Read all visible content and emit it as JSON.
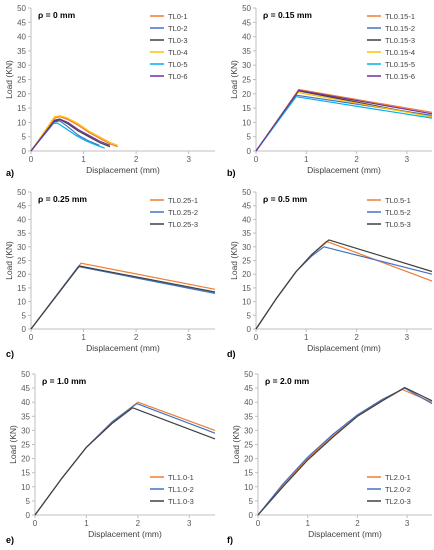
{
  "chart_data": [
    {
      "type": "line",
      "panel_letter": "a)",
      "title": "ρ = 0 mm",
      "xlabel": "Displacement (mm)",
      "ylabel": "Load (KN)",
      "xlim": [
        0,
        3.5
      ],
      "ylim": [
        0,
        50
      ],
      "xticks": [
        "0",
        "1",
        "2",
        "3"
      ],
      "yticks": [
        "0",
        "5",
        "10",
        "15",
        "20",
        "25",
        "30",
        "35",
        "40",
        "45",
        "50"
      ],
      "grid": false,
      "legend_position": "top-right",
      "series": [
        {
          "name": "TL0-1",
          "color": "#ED7D31",
          "x": [
            0,
            0.45,
            0.55,
            0.7,
            0.9,
            1.1,
            1.3,
            1.5,
            1.65
          ],
          "y": [
            0,
            11.5,
            12,
            11,
            9,
            6.5,
            4.5,
            2.5,
            1.5
          ]
        },
        {
          "name": "TL0-2",
          "color": "#4472C4",
          "x": [
            0,
            0.45,
            0.55,
            0.7,
            0.9,
            1.1,
            1.3
          ],
          "y": [
            0,
            10.2,
            10.5,
            8.5,
            5.5,
            3.5,
            2
          ]
        },
        {
          "name": "TL0-3",
          "color": "#404040",
          "x": [
            0,
            0.45,
            0.55,
            0.7,
            0.9,
            1.1,
            1.3,
            1.5
          ],
          "y": [
            0,
            10.5,
            11,
            9.5,
            7,
            5,
            3,
            1.5
          ]
        },
        {
          "name": "TL0-4",
          "color": "#FFC000",
          "x": [
            0,
            0.45,
            0.55,
            0.7,
            0.9,
            1.1,
            1.3,
            1.5,
            1.65
          ],
          "y": [
            0,
            12,
            12.3,
            11.5,
            9.5,
            7,
            5,
            3,
            2
          ]
        },
        {
          "name": "TL0-5",
          "color": "#00B0F0",
          "x": [
            0,
            0.4,
            0.5,
            0.65,
            0.85,
            1.05,
            1.25,
            1.4
          ],
          "y": [
            0,
            9.5,
            9.8,
            8,
            5.5,
            3.5,
            2,
            1
          ]
        },
        {
          "name": "TL0-6",
          "color": "#7030A0",
          "x": [
            0,
            0.45,
            0.55,
            0.7,
            0.9,
            1.1,
            1.3,
            1.5
          ],
          "y": [
            0,
            10.8,
            11.2,
            10,
            7.5,
            5.5,
            3.5,
            2
          ]
        }
      ]
    },
    {
      "type": "line",
      "panel_letter": "b)",
      "title": "ρ = 0.15 mm",
      "xlabel": "Displacement (mm)",
      "ylabel": "Load (KN)",
      "xlim": [
        0,
        3.5
      ],
      "ylim": [
        0,
        50
      ],
      "xticks": [
        "0",
        "1",
        "2",
        "3"
      ],
      "yticks": [
        "0",
        "5",
        "10",
        "15",
        "20",
        "25",
        "30",
        "35",
        "40",
        "45",
        "50"
      ],
      "grid": false,
      "legend_position": "top-right",
      "series": [
        {
          "name": "TL0.15-1",
          "color": "#ED7D31",
          "x": [
            0,
            0.85,
            3.5
          ],
          "y": [
            0,
            21.5,
            13.5
          ]
        },
        {
          "name": "TL0.15-2",
          "color": "#4472C4",
          "x": [
            0,
            0.8,
            3.5
          ],
          "y": [
            0,
            19.5,
            12.5
          ]
        },
        {
          "name": "TL0.15-3",
          "color": "#404040",
          "x": [
            0,
            0.85,
            3.5
          ],
          "y": [
            0,
            21,
            12
          ]
        },
        {
          "name": "TL0.15-4",
          "color": "#FFC000",
          "x": [
            0,
            0.82,
            3.5
          ],
          "y": [
            0,
            20.5,
            12
          ]
        },
        {
          "name": "TL0.15-5",
          "color": "#00B0F0",
          "x": [
            0,
            0.8,
            3.5
          ],
          "y": [
            0,
            19,
            11.5
          ]
        },
        {
          "name": "TL0.15-6",
          "color": "#7030A0",
          "x": [
            0,
            0.85,
            3.5
          ],
          "y": [
            0,
            21.2,
            13
          ]
        }
      ]
    },
    {
      "type": "line",
      "panel_letter": "c)",
      "title": "ρ = 0.25 mm",
      "xlabel": "Displacement (mm)",
      "ylabel": "Load (KN)",
      "xlim": [
        0,
        3.5
      ],
      "ylim": [
        0,
        50
      ],
      "xticks": [
        "0",
        "1",
        "2",
        "3"
      ],
      "yticks": [
        "0",
        "5",
        "10",
        "15",
        "20",
        "25",
        "30",
        "35",
        "40",
        "45",
        "50"
      ],
      "grid": false,
      "legend_position": "top-right",
      "series": [
        {
          "name": "TL0.25-1",
          "color": "#ED7D31",
          "x": [
            0,
            0.95,
            3.5
          ],
          "y": [
            0,
            24,
            14.5
          ]
        },
        {
          "name": "TL0.25-2",
          "color": "#4472C4",
          "x": [
            0,
            0.9,
            3.5
          ],
          "y": [
            0,
            22.8,
            13
          ]
        },
        {
          "name": "TL0.25-3",
          "color": "#404040",
          "x": [
            0,
            0.92,
            3.5
          ],
          "y": [
            0,
            23,
            13.5
          ]
        }
      ]
    },
    {
      "type": "line",
      "panel_letter": "d)",
      "title": "ρ = 0.5 mm",
      "xlabel": "Displacement (mm)",
      "ylabel": "Load (KN)",
      "xlim": [
        0,
        3.5
      ],
      "ylim": [
        0,
        50
      ],
      "xticks": [
        "0",
        "1",
        "2",
        "3"
      ],
      "yticks": [
        "0",
        "5",
        "10",
        "15",
        "20",
        "25",
        "30",
        "35",
        "40",
        "45",
        "50"
      ],
      "grid": false,
      "legend_position": "top-right",
      "series": [
        {
          "name": "TL0.5-1",
          "color": "#ED7D31",
          "x": [
            0,
            0.4,
            0.8,
            1.1,
            1.4,
            3.5
          ],
          "y": [
            0,
            11,
            21,
            27,
            32,
            17.5
          ]
        },
        {
          "name": "TL0.5-2",
          "color": "#4472C4",
          "x": [
            0,
            0.4,
            0.8,
            1.1,
            1.35,
            3.5
          ],
          "y": [
            0,
            11,
            21,
            26.5,
            30,
            20
          ]
        },
        {
          "name": "TL0.5-3",
          "color": "#404040",
          "x": [
            0,
            0.4,
            0.8,
            1.1,
            1.45,
            3.5
          ],
          "y": [
            0,
            11,
            21,
            27,
            32.5,
            21
          ]
        }
      ]
    },
    {
      "type": "line",
      "panel_letter": "e)",
      "title": "ρ = 1.0 mm",
      "xlabel": "Displacement (mm)",
      "ylabel": "Load (KN)",
      "xlim": [
        0,
        3.5
      ],
      "ylim": [
        0,
        50
      ],
      "xticks": [
        "0",
        "1",
        "2",
        "3"
      ],
      "yticks": [
        "0",
        "5",
        "10",
        "15",
        "20",
        "25",
        "30",
        "35",
        "40",
        "45",
        "50"
      ],
      "grid": false,
      "legend_position": "bottom-right",
      "series": [
        {
          "name": "TL1.0-1",
          "color": "#ED7D31",
          "x": [
            0,
            0.5,
            1.0,
            1.5,
            2.0,
            3.5
          ],
          "y": [
            0,
            12.5,
            24,
            33,
            40,
            30
          ]
        },
        {
          "name": "TL1.0-2",
          "color": "#4472C4",
          "x": [
            0,
            0.5,
            1.0,
            1.5,
            1.98,
            3.5
          ],
          "y": [
            0,
            12.5,
            24,
            33,
            39.5,
            29
          ]
        },
        {
          "name": "TL1.0-3",
          "color": "#404040",
          "x": [
            0,
            0.5,
            1.0,
            1.5,
            1.9,
            3.5
          ],
          "y": [
            0,
            12.5,
            24,
            32.5,
            38,
            27
          ]
        }
      ]
    },
    {
      "type": "line",
      "panel_letter": "f)",
      "title": "ρ = 2.0 mm",
      "xlabel": "Displacement (mm)",
      "ylabel": "Load (KN)",
      "xlim": [
        0,
        3.5
      ],
      "ylim": [
        0,
        50
      ],
      "xticks": [
        "0",
        "1",
        "2",
        "3"
      ],
      "yticks": [
        "0",
        "5",
        "10",
        "15",
        "20",
        "25",
        "30",
        "35",
        "40",
        "45",
        "50"
      ],
      "grid": false,
      "legend_position": "bottom-right",
      "series": [
        {
          "name": "TL2.0-1",
          "color": "#ED7D31",
          "x": [
            0,
            0.5,
            1.0,
            1.5,
            2.0,
            2.5,
            2.9,
            3.5
          ],
          "y": [
            0,
            10.5,
            20,
            28,
            35,
            40.5,
            44.5,
            40
          ]
        },
        {
          "name": "TL2.0-2",
          "color": "#4472C4",
          "x": [
            0,
            0.5,
            1.0,
            1.5,
            2.0,
            2.5,
            2.95,
            3.5
          ],
          "y": [
            0,
            11,
            20.5,
            28.5,
            35.5,
            41,
            45,
            39.5
          ]
        },
        {
          "name": "TL2.0-3",
          "color": "#404040",
          "x": [
            0,
            0.5,
            1.0,
            1.5,
            2.0,
            2.5,
            2.95,
            3.5
          ],
          "y": [
            0,
            10,
            19.5,
            27.5,
            35,
            40.5,
            45.2,
            40.5
          ]
        }
      ]
    }
  ]
}
